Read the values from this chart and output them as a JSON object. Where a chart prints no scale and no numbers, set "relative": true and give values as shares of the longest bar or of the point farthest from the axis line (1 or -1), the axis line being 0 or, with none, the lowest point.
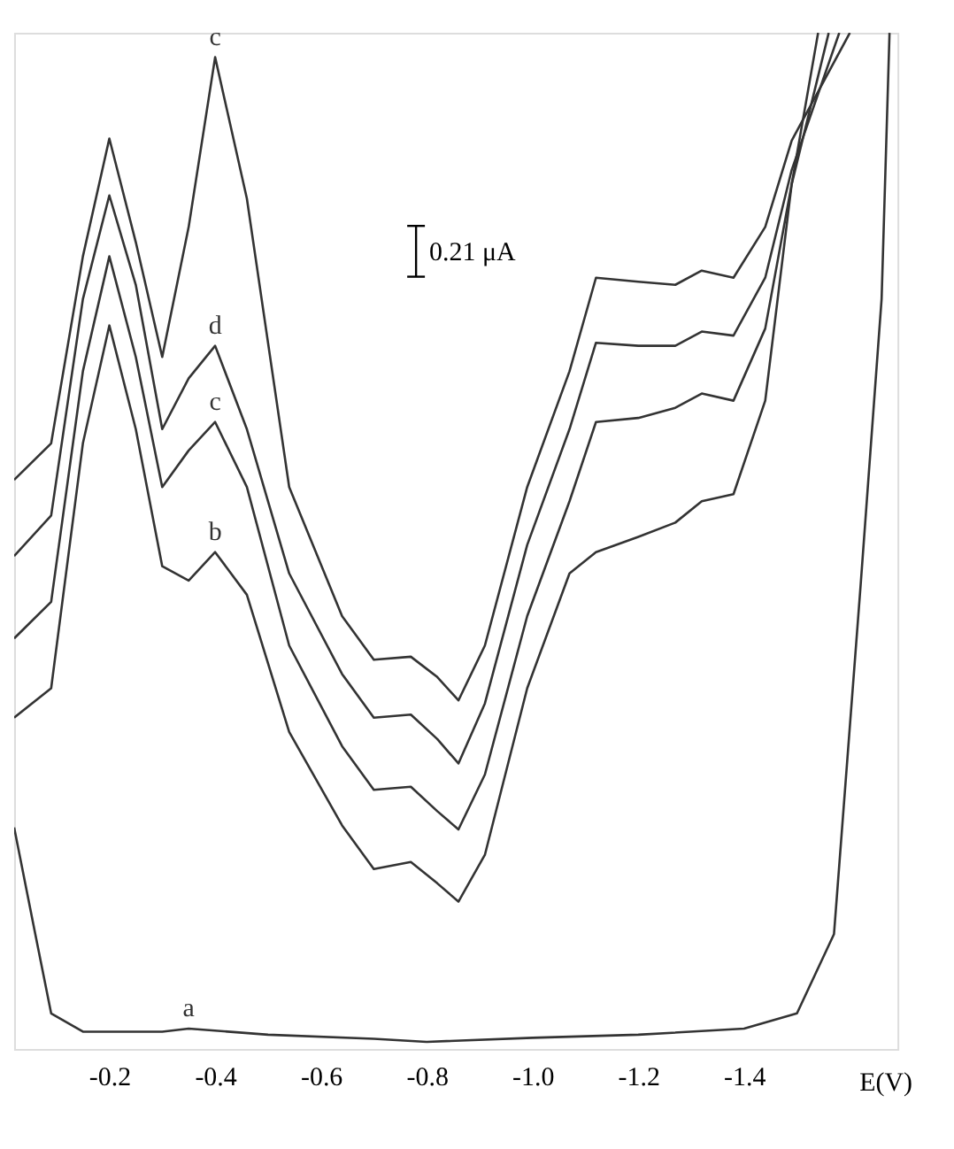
{
  "chart_data": {
    "type": "line",
    "relative": true,
    "xlabel": "E(V)",
    "xlim": [
      -0.02,
      -1.69
    ],
    "xticks": [
      {
        "value": -0.2,
        "label": "-0.2"
      },
      {
        "value": -0.4,
        "label": "-0.4"
      },
      {
        "value": -0.6,
        "label": "-0.6"
      },
      {
        "value": -0.8,
        "label": "-0.8"
      },
      {
        "value": -1.0,
        "label": "-1.0"
      },
      {
        "value": -1.2,
        "label": "-1.2"
      },
      {
        "value": -1.4,
        "label": "-1.4"
      }
    ],
    "grid": false,
    "marker": "none",
    "line_style": "solid",
    "annotations": [
      "0.21 μA"
    ],
    "series": [
      {
        "name": "c",
        "color": "#333333",
        "x": [
          -0.02,
          -0.09,
          -0.15,
          -0.2,
          -0.25,
          -0.3,
          -0.35,
          -0.4,
          -0.46,
          -0.54,
          -0.64,
          -0.7,
          -0.77,
          -0.82,
          -0.86,
          -0.91,
          -0.99,
          -1.07,
          -1.12,
          -1.2,
          -1.27,
          -1.32,
          -1.38,
          -1.44,
          -1.49,
          -1.6
        ],
        "values": [
          0.56,
          0.596,
          0.78,
          0.896,
          0.794,
          0.681,
          0.809,
          0.976,
          0.837,
          0.553,
          0.426,
          0.383,
          0.386,
          0.366,
          0.343,
          0.397,
          0.553,
          0.667,
          0.759,
          0.755,
          0.752,
          0.766,
          0.759,
          0.809,
          0.894,
          1.0
        ]
      },
      {
        "name": "d",
        "color": "#333333",
        "x": [
          -0.02,
          -0.09,
          -0.15,
          -0.2,
          -0.25,
          -0.3,
          -0.35,
          -0.4,
          -0.46,
          -0.54,
          -0.64,
          -0.7,
          -0.77,
          -0.82,
          -0.86,
          -0.91,
          -0.99,
          -1.07,
          -1.12,
          -1.2,
          -1.27,
          -1.32,
          -1.38,
          -1.44,
          -1.49,
          -1.58
        ],
        "values": [
          0.485,
          0.525,
          0.738,
          0.84,
          0.752,
          0.61,
          0.66,
          0.692,
          0.61,
          0.468,
          0.369,
          0.326,
          0.329,
          0.305,
          0.281,
          0.34,
          0.496,
          0.61,
          0.695,
          0.692,
          0.692,
          0.706,
          0.702,
          0.759,
          0.865,
          1.0
        ]
      },
      {
        "name": "c",
        "color": "#333333",
        "x": [
          -0.02,
          -0.09,
          -0.15,
          -0.2,
          -0.25,
          -0.3,
          -0.35,
          -0.4,
          -0.46,
          -0.54,
          -0.64,
          -0.7,
          -0.77,
          -0.82,
          -0.86,
          -0.91,
          -0.99,
          -1.07,
          -1.12,
          -1.2,
          -1.27,
          -1.32,
          -1.38,
          -1.44,
          -1.49,
          -1.56
        ],
        "values": [
          0.404,
          0.44,
          0.667,
          0.78,
          0.681,
          0.553,
          0.589,
          0.617,
          0.553,
          0.397,
          0.298,
          0.255,
          0.258,
          0.234,
          0.216,
          0.27,
          0.426,
          0.539,
          0.617,
          0.621,
          0.631,
          0.645,
          0.638,
          0.709,
          0.851,
          1.0
        ]
      },
      {
        "name": "b",
        "color": "#333333",
        "x": [
          -0.02,
          -0.09,
          -0.15,
          -0.2,
          -0.25,
          -0.3,
          -0.35,
          -0.4,
          -0.46,
          -0.54,
          -0.64,
          -0.7,
          -0.77,
          -0.82,
          -0.86,
          -0.91,
          -0.99,
          -1.07,
          -1.12,
          -1.2,
          -1.27,
          -1.32,
          -1.38,
          -1.44,
          -1.49,
          -1.54
        ],
        "values": [
          0.326,
          0.355,
          0.596,
          0.712,
          0.61,
          0.475,
          0.461,
          0.489,
          0.447,
          0.312,
          0.22,
          0.177,
          0.184,
          0.163,
          0.145,
          0.191,
          0.355,
          0.468,
          0.489,
          0.504,
          0.518,
          0.539,
          0.546,
          0.638,
          0.851,
          1.0
        ]
      },
      {
        "name": "a",
        "color": "#333333",
        "x": [
          -0.02,
          -0.06,
          -0.09,
          -0.15,
          -0.3,
          -0.35,
          -0.5,
          -0.7,
          -0.8,
          -1.0,
          -1.2,
          -1.4,
          -1.5,
          -1.57,
          -1.62,
          -1.66,
          -1.675
        ],
        "values": [
          0.218,
          0.113,
          0.035,
          0.017,
          0.017,
          0.02,
          0.014,
          0.01,
          0.007,
          0.011,
          0.014,
          0.02,
          0.035,
          0.113,
          0.454,
          0.738,
          1.0
        ]
      }
    ]
  }
}
